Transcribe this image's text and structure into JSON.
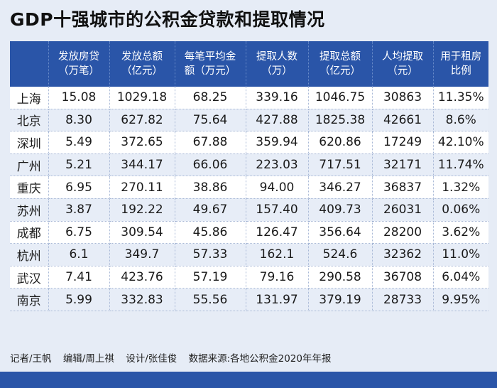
{
  "title": "GDP十强城市的公积金贷款和提取情况",
  "chart_data": {
    "type": "table",
    "title": "GDP十强城市的公积金贷款和提取情况",
    "columns": [
      {
        "line1": "",
        "line2": ""
      },
      {
        "line1": "发放房贷",
        "line2": "（万笔）"
      },
      {
        "line1": "发放总额",
        "line2": "（亿元）"
      },
      {
        "line1": "每笔平均金",
        "line2": "额（万元）"
      },
      {
        "line1": "提取人数",
        "line2": "（万）"
      },
      {
        "line1": "提取总额",
        "line2": "（亿元）"
      },
      {
        "line1": "人均提取",
        "line2": "（元）"
      },
      {
        "line1": "用于租房",
        "line2": "比例"
      }
    ],
    "rows": [
      [
        "上海",
        "15.08",
        "1029.18",
        "68.25",
        "339.16",
        "1046.75",
        "30863",
        "11.35%"
      ],
      [
        "北京",
        "8.30",
        "627.82",
        "75.64",
        "427.88",
        "1825.38",
        "42661",
        "8.6%"
      ],
      [
        "深圳",
        "5.49",
        "372.65",
        "67.88",
        "359.94",
        "620.86",
        "17249",
        "42.10%"
      ],
      [
        "广州",
        "5.21",
        "344.17",
        "66.06",
        "223.03",
        "717.51",
        "32171",
        "11.74%"
      ],
      [
        "重庆",
        "6.95",
        "270.11",
        "38.86",
        "94.00",
        "346.27",
        "36837",
        "1.32%"
      ],
      [
        "苏州",
        "3.87",
        "192.22",
        "49.67",
        "157.40",
        "409.73",
        "26031",
        "0.06%"
      ],
      [
        "成都",
        "6.75",
        "309.54",
        "45.86",
        "126.47",
        "356.64",
        "28200",
        "3.62%"
      ],
      [
        "杭州",
        "6.1",
        "349.7",
        "57.33",
        "162.1",
        "524.6",
        "32362",
        "11.0%"
      ],
      [
        "武汉",
        "7.41",
        "423.76",
        "57.19",
        "79.16",
        "290.58",
        "36708",
        "6.04%"
      ],
      [
        "南京",
        "5.99",
        "332.83",
        "55.56",
        "131.97",
        "379.19",
        "28733",
        "9.95%"
      ]
    ]
  },
  "footer": {
    "reporter": "记者/王帆",
    "editor": "编辑/周上祺",
    "design": "设计/张佳俊",
    "source": "数据来源:各地公积金2020年年报"
  },
  "colors": {
    "header_bg": "#2a55a8",
    "page_bg": "#e6ecf6",
    "row_alt": "#e7edf7"
  }
}
